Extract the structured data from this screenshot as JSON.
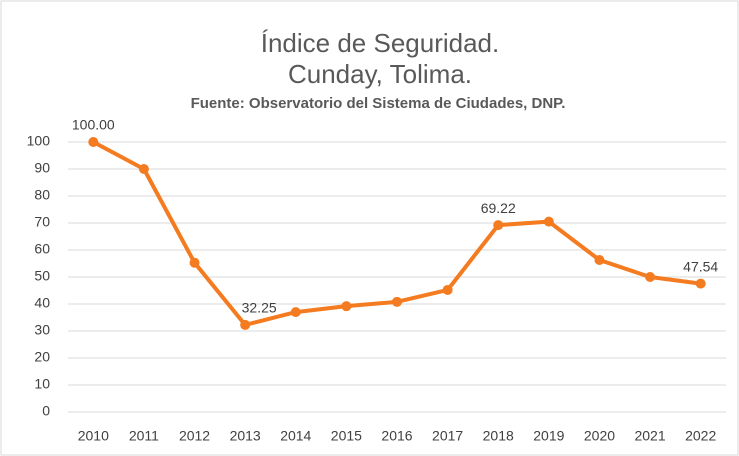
{
  "chart_data": {
    "type": "line",
    "title": [
      "Índice de Seguridad.",
      "Cunday, Tolima."
    ],
    "subtitle": "Fuente: Observatorio del Sistema de Ciudades, DNP.",
    "categories": [
      "2010",
      "2011",
      "2012",
      "2013",
      "2014",
      "2015",
      "2016",
      "2017",
      "2018",
      "2019",
      "2020",
      "2021",
      "2022"
    ],
    "series": [
      {
        "name": "Índice de Seguridad",
        "color": "#f47b20",
        "values": [
          100,
          90,
          55.3,
          32.25,
          37,
          39.2,
          40.8,
          45.2,
          69.22,
          70.5,
          56.3,
          50,
          47.54
        ],
        "value_labels": [
          "100.00",
          null,
          null,
          "32.25",
          null,
          null,
          null,
          null,
          "69.22",
          null,
          null,
          null,
          "47.54"
        ]
      }
    ],
    "ylim": [
      0,
      100
    ],
    "yticks": [
      0,
      10,
      20,
      30,
      40,
      50,
      60,
      70,
      80,
      90,
      100
    ],
    "grid": true
  }
}
